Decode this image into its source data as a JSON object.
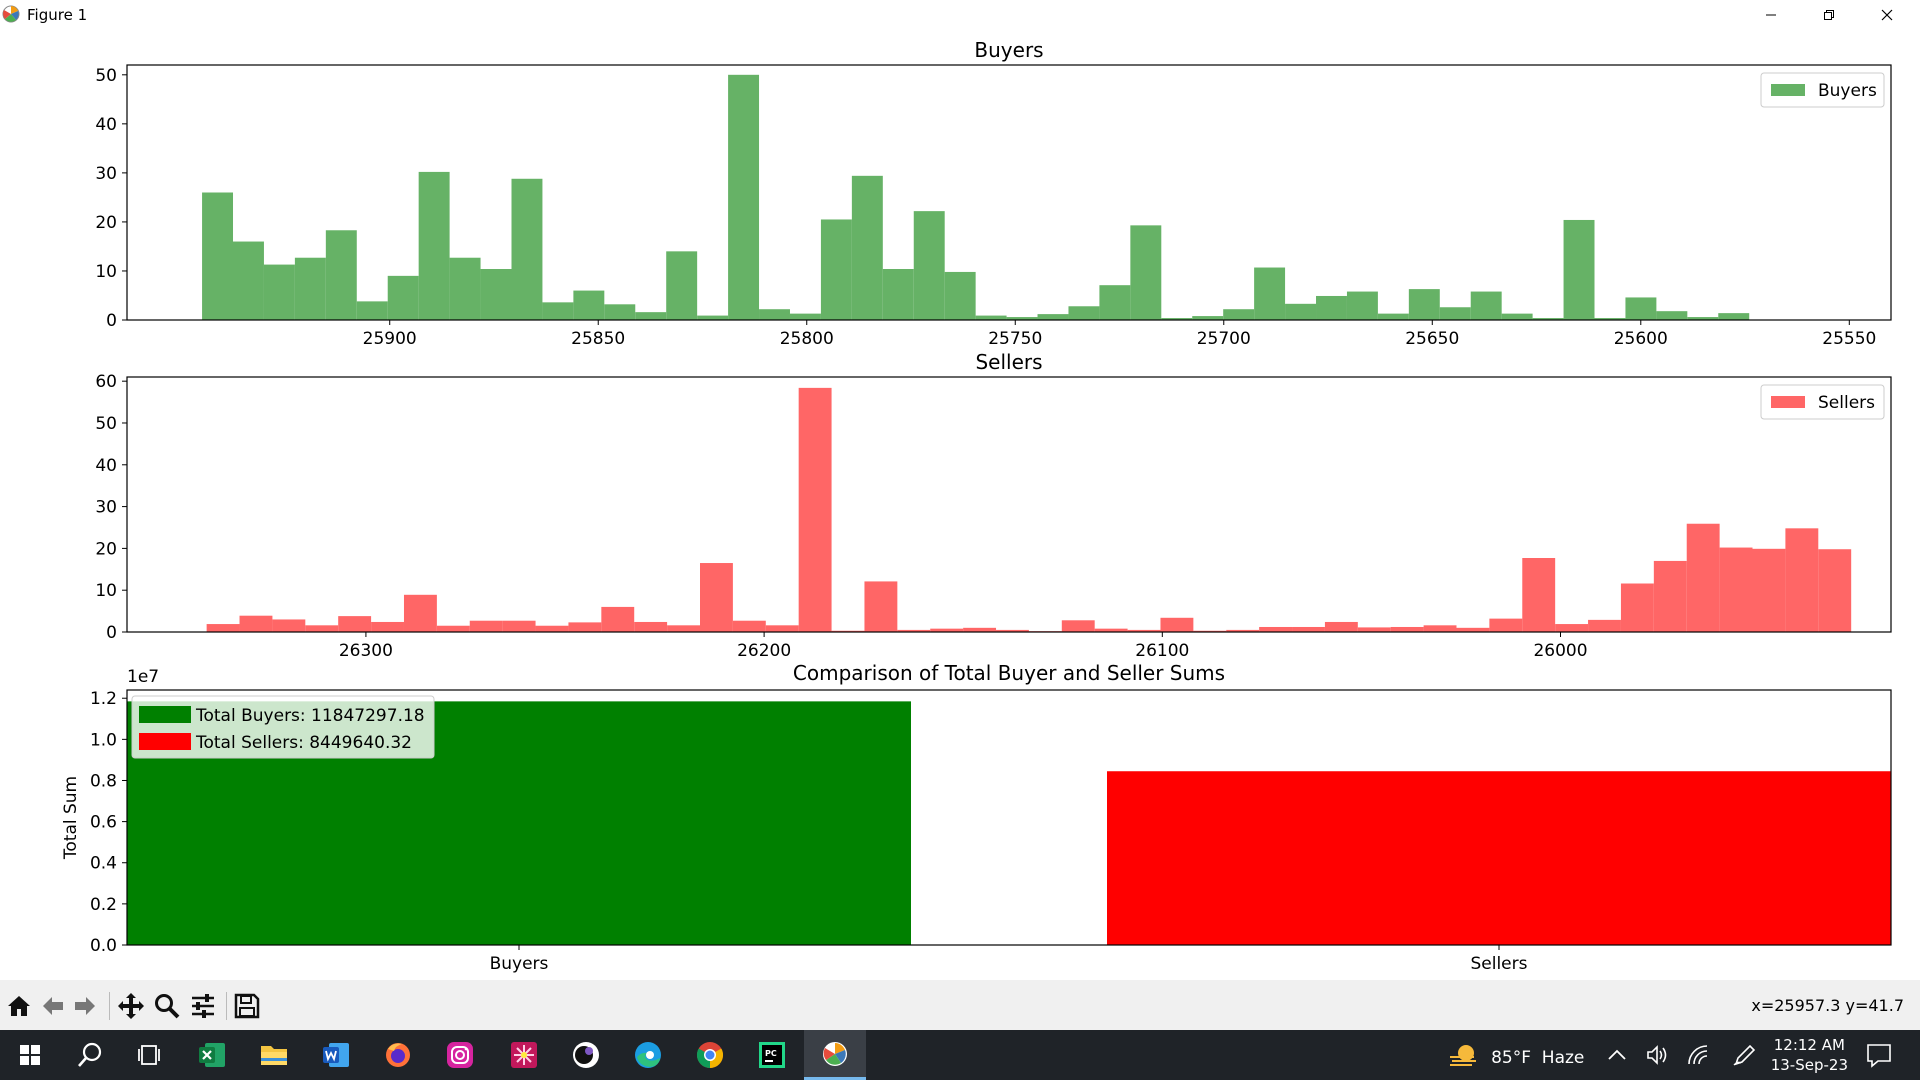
{
  "window": {
    "title": "Figure 1"
  },
  "colors": {
    "buyers": "#66b266",
    "sellers": "#ff6666",
    "total_buyers": "#008000",
    "total_sellers": "#ff0000"
  },
  "chart_data": [
    {
      "type": "bar",
      "title": "Buyers",
      "legend": {
        "entries": [
          "Buyers"
        ],
        "placement": "top-right"
      },
      "x_axis": {
        "inverted": true,
        "xlim": [
          25963,
          25540
        ],
        "ticks": [
          25900,
          25850,
          25800,
          25750,
          25700,
          25650,
          25600,
          25550
        ]
      },
      "ylim": [
        0,
        52
      ],
      "yticks": [
        0,
        10,
        20,
        30,
        40,
        50
      ],
      "bins": {
        "start": 25945,
        "width": 7.42
      },
      "values": [
        26,
        16,
        11.3,
        12.7,
        18.3,
        3.8,
        9,
        30.2,
        12.7,
        10.4,
        28.8,
        3.6,
        6,
        3.2,
        1.6,
        14,
        0.9,
        50,
        2.2,
        1.3,
        20.5,
        29.4,
        10.4,
        22.2,
        9.8,
        0.9,
        0.6,
        1.2,
        2.8,
        7.1,
        19.3,
        0.4,
        0.8,
        2.2,
        10.7,
        3.3,
        4.9,
        5.8,
        1.3,
        6.3,
        2.6,
        5.8,
        1.3,
        0.4,
        20.4,
        0.4,
        4.6,
        1.8,
        0.6,
        1.4
      ]
    },
    {
      "type": "bar",
      "title": "Sellers",
      "legend": {
        "entries": [
          "Sellers"
        ],
        "placement": "top-right"
      },
      "x_axis": {
        "inverted": true,
        "xlim": [
          26360,
          25917
        ],
        "ticks": [
          26300,
          26200,
          26100,
          26000
        ]
      },
      "ylim": [
        0,
        61
      ],
      "yticks": [
        0,
        10,
        20,
        30,
        40,
        50,
        60
      ],
      "bins": {
        "start": 26340,
        "width": 8.26
      },
      "values": [
        1.9,
        3.9,
        3,
        1.6,
        3.8,
        2.4,
        8.9,
        1.5,
        2.7,
        2.7,
        1.5,
        2.3,
        6,
        2.4,
        1.6,
        16.5,
        2.7,
        1.6,
        58.4,
        0.3,
        12.1,
        0.5,
        0.8,
        1,
        0.5,
        0.2,
        2.8,
        0.8,
        0.5,
        3.4,
        0.3,
        0.5,
        1.2,
        1.2,
        2.4,
        1.1,
        1.2,
        1.6,
        1,
        3.2,
        17.7,
        1.9,
        2.9,
        11.6,
        17,
        25.9,
        20.2,
        19.9,
        24.8,
        19.8
      ]
    },
    {
      "type": "bar",
      "title": "Comparison of Total Buyer and Seller Sums",
      "categories": [
        "Buyers",
        "Sellers"
      ],
      "values": [
        11847297.18,
        8449640.32
      ],
      "ylabel": "Total Sum",
      "offset_label": "1e7",
      "ylim": [
        0,
        12400000
      ],
      "yticks": [
        "0.0",
        "0.2",
        "0.4",
        "0.6",
        "0.8",
        "1.0",
        "1.2"
      ],
      "legend": {
        "entries": [
          "Total Buyers: 11847297.18",
          "Total Sellers: 8449640.32"
        ],
        "placement": "top-left"
      }
    }
  ],
  "toolbar": {
    "buttons": [
      {
        "name": "home-button",
        "icon": "home-icon"
      },
      {
        "name": "back-button",
        "icon": "arrow-left-icon"
      },
      {
        "name": "forward-button",
        "icon": "arrow-right-icon"
      },
      {
        "name": "pan-button",
        "icon": "move-icon"
      },
      {
        "name": "zoom-button",
        "icon": "magnifier-icon"
      },
      {
        "name": "configure-subplots-button",
        "icon": "sliders-icon"
      },
      {
        "name": "save-button",
        "icon": "floppy-disk-icon"
      }
    ],
    "coords": "x=25957.3 y=41.7"
  },
  "taskbar": {
    "weather": "85°F  Haze",
    "time": "12:12 AM",
    "date": "13-Sep-23",
    "apps": [
      "start",
      "search",
      "task-view",
      "excel",
      "file-explorer",
      "word",
      "firefox",
      "instagram",
      "flower-app",
      "davinci-app",
      "edge",
      "chrome",
      "pycharm",
      "matplotlib"
    ]
  }
}
